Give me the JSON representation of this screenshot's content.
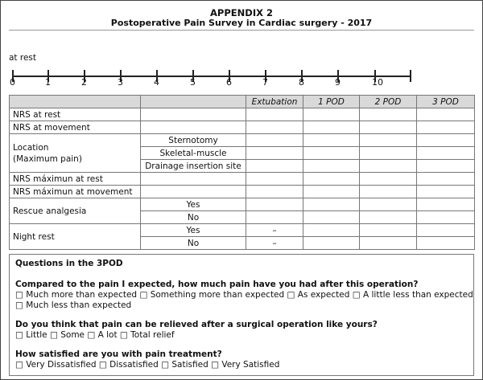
{
  "header": {
    "title": "APPENDIX 2",
    "subtitle": "Postoperative Pain Survey in Cardiac surgery - 2017"
  },
  "scale": {
    "label": "at rest",
    "ticks": [
      "0",
      "1",
      "2",
      "3",
      "4",
      "5",
      "6",
      "7",
      "8",
      "9",
      "10"
    ]
  },
  "table": {
    "columns": [
      "",
      "",
      "Extubation",
      "1 POD",
      "2 POD",
      "3 POD"
    ],
    "rows": {
      "nrs_rest": "NRS at rest",
      "nrs_movement": "NRS at movement",
      "location": "Location",
      "location_sub": "(Maximum pain)",
      "location_options": [
        "Sternotomy",
        "Skeletal-muscle",
        "Drainage insertion site"
      ],
      "nrs_max_rest": "NRS máximun at rest",
      "nrs_max_movement": "NRS máximun at  movement",
      "rescue": "Rescue analgesia",
      "rescue_options": [
        "Yes",
        "No"
      ],
      "night": "Night rest",
      "night_options": [
        "Yes",
        "No"
      ],
      "night_extubation": [
        "–",
        "–"
      ]
    }
  },
  "questions": {
    "heading": "Questions in the 3POD",
    "q1": "Compared to the pain I expected, how much pain have you had after this operation?",
    "q1_line1": "□ Much more than expected □ Something more than expected □ As expected □ A little less than expected",
    "q1_line2": "□ Much less than expected",
    "q2": "Do you think that pain can be relieved after a surgical operation like yours?",
    "q2_options": "□ Little □ Some □ A lot □ Total relief",
    "q3": "How satisfied are you with pain treatment?",
    "q3_options": "□ Very Dissatisfied □ Dissatisfied □ Satisfied □ Very Satisfied"
  }
}
